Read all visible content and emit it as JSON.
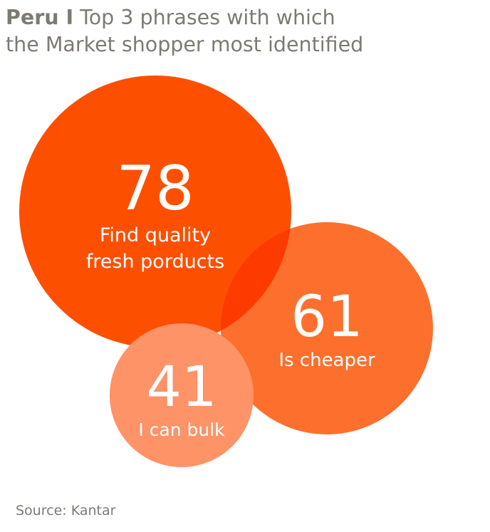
{
  "title_country": "Peru I",
  "title_line1_rest": "Top 3 phrases with which",
  "title_line2": "the Market shopper most identified",
  "source": "Source: Kantar",
  "colors": {
    "title_text": "#7d7a72",
    "bubble_1": "#fd4f00",
    "bubble_2": "#fd6f2d",
    "bubble_3": "#fd9367",
    "overlap": "#fd3a00",
    "label_text": "#ffffff"
  },
  "chart_data": {
    "type": "bubble",
    "title": "Peru I Top 3 phrases with which the Market shopper most identified",
    "series": [
      {
        "value": 78,
        "label_line1": "Find quality",
        "label_line2": "fresh porducts"
      },
      {
        "value": 61,
        "label_line1": "Is cheaper",
        "label_line2": ""
      },
      {
        "value": 41,
        "label_line1": "I can bulk",
        "label_line2": ""
      }
    ]
  }
}
